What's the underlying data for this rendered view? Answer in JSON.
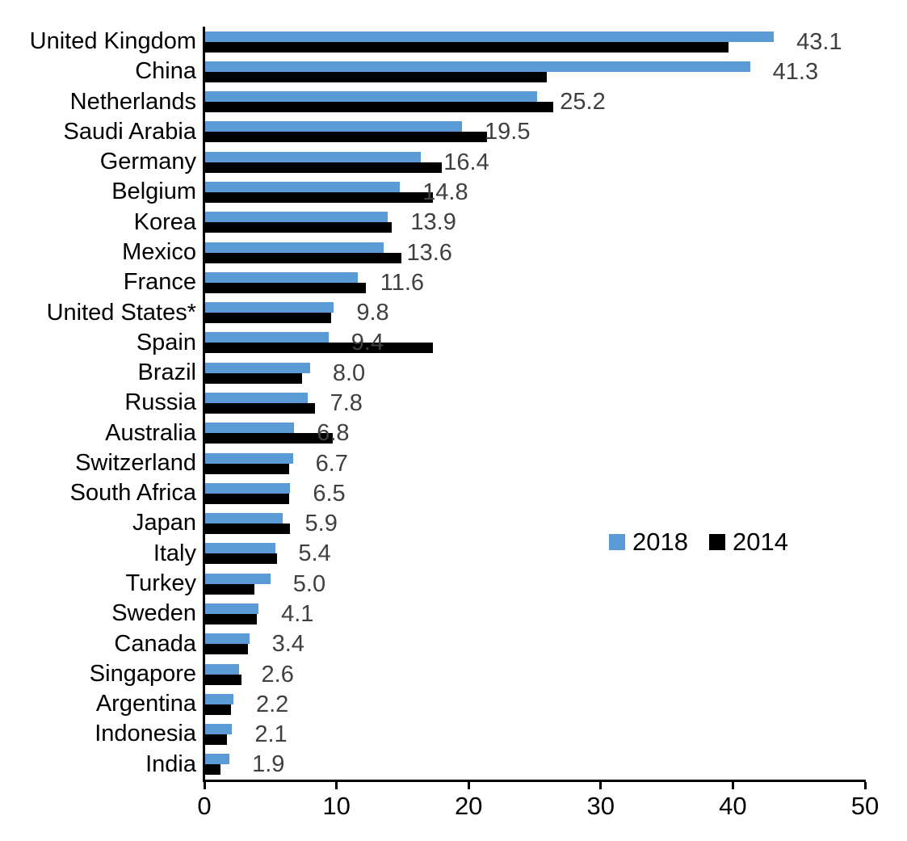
{
  "chart_data": {
    "type": "bar",
    "orientation": "horizontal",
    "title": "",
    "xlabel": "",
    "ylabel": "",
    "grid": false,
    "xlim": [
      0,
      50
    ],
    "x_ticks": [
      "0",
      "10",
      "20",
      "30",
      "40",
      "50"
    ],
    "legend_position": "middle-right",
    "data_label_color": "#404040",
    "categories": [
      "United Kingdom",
      "China",
      "Netherlands",
      "Saudi Arabia",
      "Germany",
      "Belgium",
      "Korea",
      "Mexico",
      "France",
      "United States*",
      "Spain",
      "Brazil",
      "Russia",
      "Australia",
      "Switzerland",
      "South Africa",
      "Japan",
      "Italy",
      "Turkey",
      "Sweden",
      "Canada",
      "Singapore",
      "Argentina",
      "Indonesia",
      "India"
    ],
    "series": [
      {
        "name": "2018",
        "color": "#5B9BD5",
        "values": [
          43.1,
          41.3,
          25.2,
          19.5,
          16.4,
          14.8,
          13.9,
          13.6,
          11.6,
          9.8,
          9.4,
          8.0,
          7.8,
          6.8,
          6.7,
          6.5,
          5.9,
          5.4,
          5.0,
          4.1,
          3.4,
          2.6,
          2.2,
          2.1,
          1.9
        ],
        "data_labels": [
          "43.1",
          "41.3",
          "25.2",
          "19.5",
          "16.4",
          "14.8",
          "13.9",
          "13.6",
          "11.6",
          "9.8",
          "9.4",
          "8.0",
          "7.8",
          "6.8",
          "6.7",
          "6.5",
          "5.9",
          "5.4",
          "5.0",
          "4.1",
          "3.4",
          "2.6",
          "2.2",
          "2.1",
          "1.9"
        ]
      },
      {
        "name": "2014",
        "color": "#000000",
        "values": [
          39.7,
          25.9,
          26.4,
          21.4,
          18.0,
          17.3,
          14.2,
          14.9,
          12.2,
          9.6,
          17.3,
          7.4,
          8.4,
          9.7,
          6.4,
          6.4,
          6.5,
          5.5,
          3.8,
          4.0,
          3.3,
          2.8,
          2.0,
          1.7,
          1.2
        ]
      }
    ]
  },
  "legend": {
    "items": [
      {
        "label": "2018",
        "color": "#5B9BD5"
      },
      {
        "label": "2014",
        "color": "#000000"
      }
    ]
  }
}
